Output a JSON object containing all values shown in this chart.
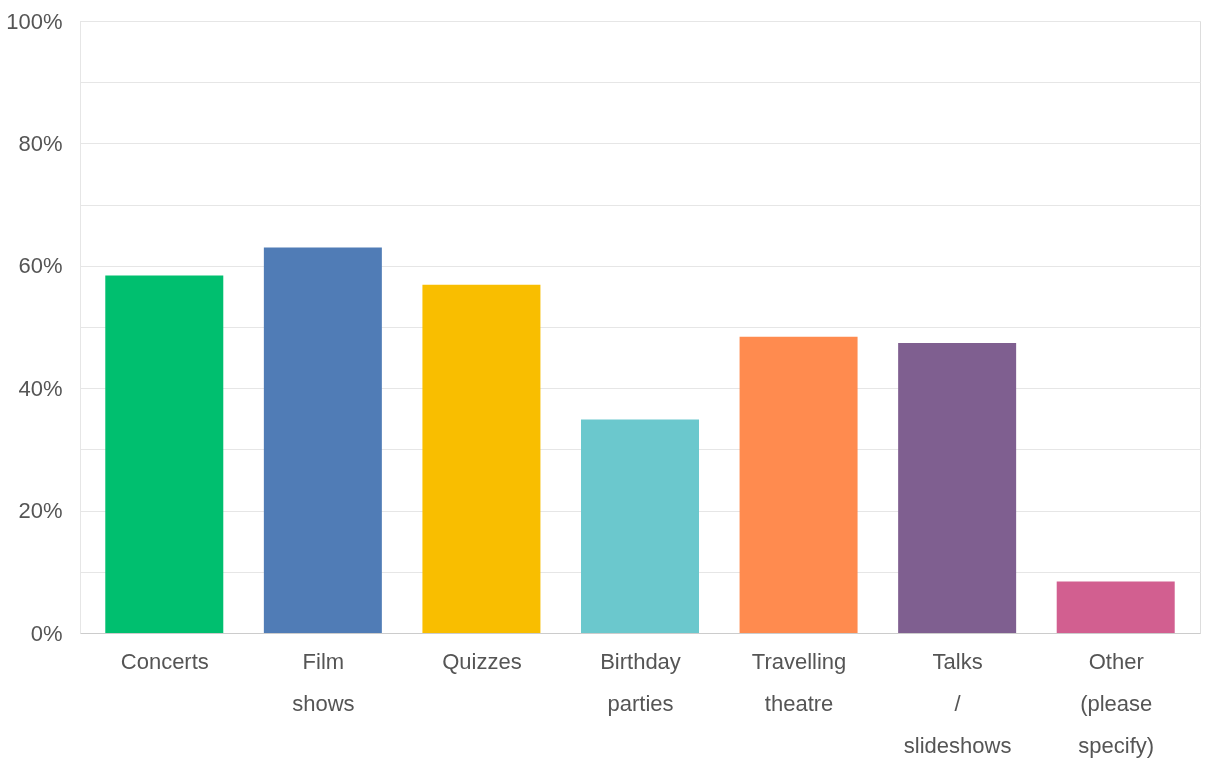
{
  "chart_data": {
    "type": "bar",
    "categories": [
      "Concerts",
      "Film shows",
      "Quizzes",
      "Birthday parties",
      "Travelling theatre",
      "Talks / slideshows",
      "Other (please specify)"
    ],
    "values": [
      58.4,
      63.0,
      56.9,
      34.9,
      48.4,
      47.4,
      8.4
    ],
    "colors": [
      "#00bf6f",
      "#507cb6",
      "#f9be00",
      "#6bc8cd",
      "#ff8b4f",
      "#7f5f90",
      "#d25f90"
    ],
    "ylim": [
      0,
      100
    ],
    "yticks": [
      {
        "value": 0,
        "label": "0%"
      },
      {
        "value": 10,
        "label": null
      },
      {
        "value": 20,
        "label": "20%"
      },
      {
        "value": 30,
        "label": null
      },
      {
        "value": 40,
        "label": "40%"
      },
      {
        "value": 50,
        "label": null
      },
      {
        "value": 60,
        "label": "60%"
      },
      {
        "value": 70,
        "label": null
      },
      {
        "value": 80,
        "label": "80%"
      },
      {
        "value": 90,
        "label": null
      },
      {
        "value": 100,
        "label": "100%"
      }
    ],
    "grid": "y"
  }
}
